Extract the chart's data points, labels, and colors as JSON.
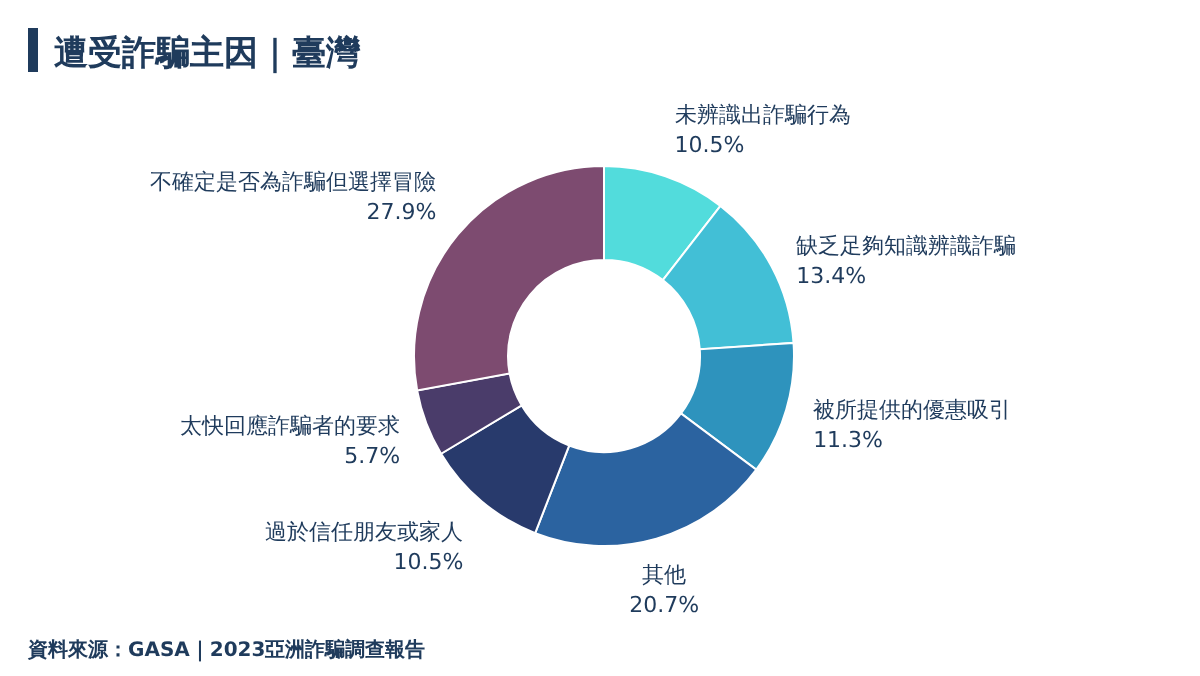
{
  "chart_data": {
    "type": "donut",
    "title": "遭受詐騙主因｜臺灣",
    "categories": [
      "未辨識出詐騙行為",
      "缺乏足夠知識辨識詐騙",
      "被所提供的優惠吸引",
      "其他",
      "過於信任朋友或家人",
      "太快回應詐騙者的要求",
      "不確定是否為詐騙但選擇冒險"
    ],
    "values": [
      10.5,
      13.4,
      11.3,
      20.7,
      10.5,
      5.7,
      27.9
    ],
    "colors": [
      "#52dcdc",
      "#42bfd6",
      "#2e93bd",
      "#2b63a0",
      "#283a6c",
      "#4a3c6a",
      "#7d4b70"
    ],
    "value_labels": [
      "10.5%",
      "13.4%",
      "11.3%",
      "20.7%",
      "10.5%",
      "5.7%",
      "27.9%"
    ],
    "annotations": [
      "資料來源：GASA｜2023亞洲詐騙調查報告"
    ]
  }
}
